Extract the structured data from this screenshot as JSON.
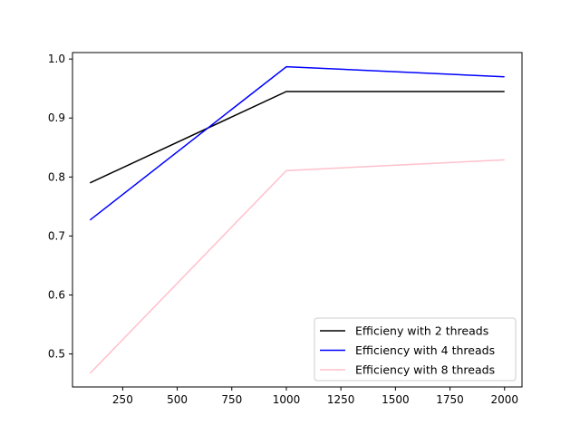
{
  "chart_data": {
    "type": "line",
    "title": "",
    "xlabel": "",
    "ylabel": "",
    "x": [
      100,
      1000,
      2000
    ],
    "xlim": [
      20,
      2080
    ],
    "ylim": [
      0.444,
      1.011
    ],
    "xticks": [
      250,
      500,
      750,
      1000,
      1250,
      1500,
      1750,
      2000
    ],
    "yticks": [
      0.5,
      0.6,
      0.7,
      0.8,
      0.9,
      1.0
    ],
    "xtick_labels": [
      "250",
      "500",
      "750",
      "1000",
      "1250",
      "1500",
      "1750",
      "2000"
    ],
    "ytick_labels": [
      "0.5",
      "0.6",
      "0.7",
      "0.8",
      "0.9",
      "1.0"
    ],
    "grid": false,
    "legend_position": "lower-right",
    "series": [
      {
        "name": "Efficieny with 2 threads",
        "color": "#000000",
        "values": [
          0.79,
          0.945,
          0.945
        ]
      },
      {
        "name": "Efficiency with 4 threads",
        "color": "#0000ff",
        "values": [
          0.727,
          0.987,
          0.97
        ]
      },
      {
        "name": "Efficiency with 8 threads",
        "color": "#ffc0cb",
        "values": [
          0.467,
          0.811,
          0.829
        ]
      }
    ]
  }
}
